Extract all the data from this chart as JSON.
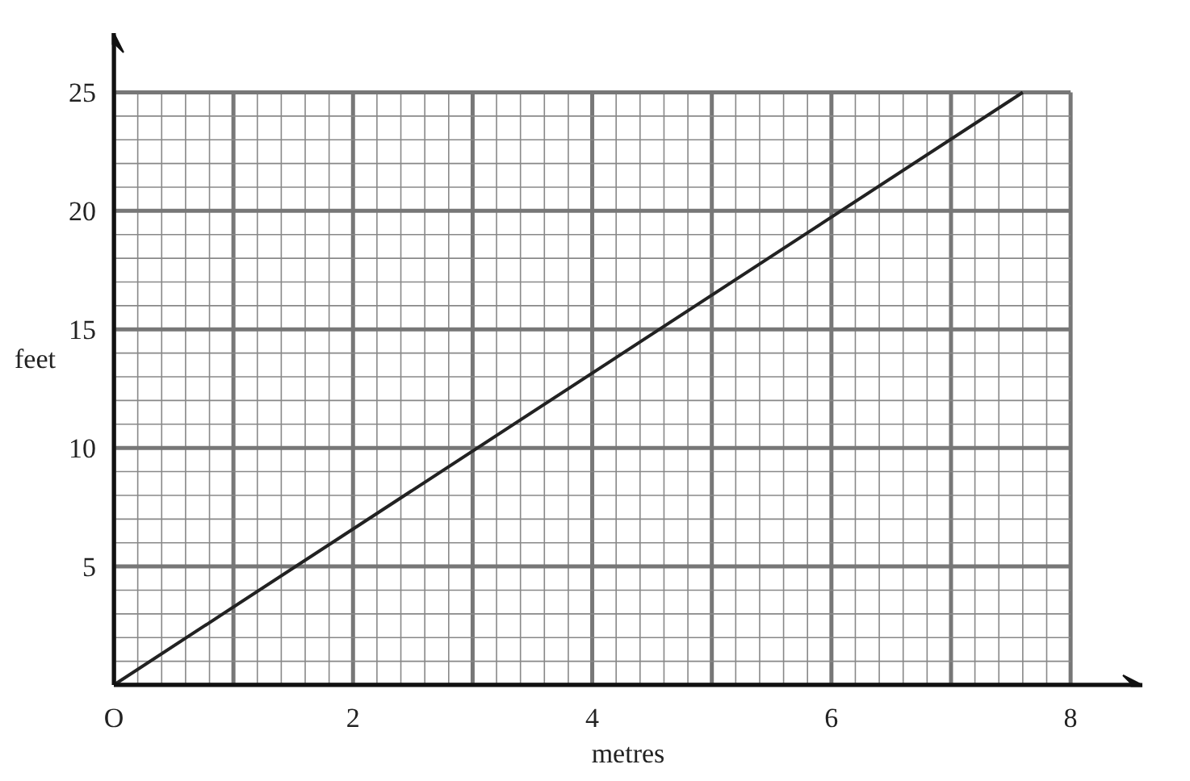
{
  "chart_data": {
    "type": "line",
    "xlabel": "metres",
    "ylabel": "feet",
    "series": [
      {
        "color": "#222222",
        "x": [
          0,
          7.6
        ],
        "values": [
          0,
          25
        ]
      }
    ],
    "xlim": [
      0,
      8.6
    ],
    "ylim": [
      0,
      27.5
    ],
    "xticks": [
      {
        "value": 0,
        "label": "O"
      },
      {
        "value": 1,
        "label": null
      },
      2,
      {
        "value": 3,
        "label": null
      },
      4,
      {
        "value": 5,
        "label": null
      },
      6,
      {
        "value": 7,
        "label": null
      },
      8
    ],
    "yticks": [
      5,
      10,
      15,
      20,
      25
    ],
    "grid": true,
    "marker": "none",
    "line_style": "solid"
  }
}
